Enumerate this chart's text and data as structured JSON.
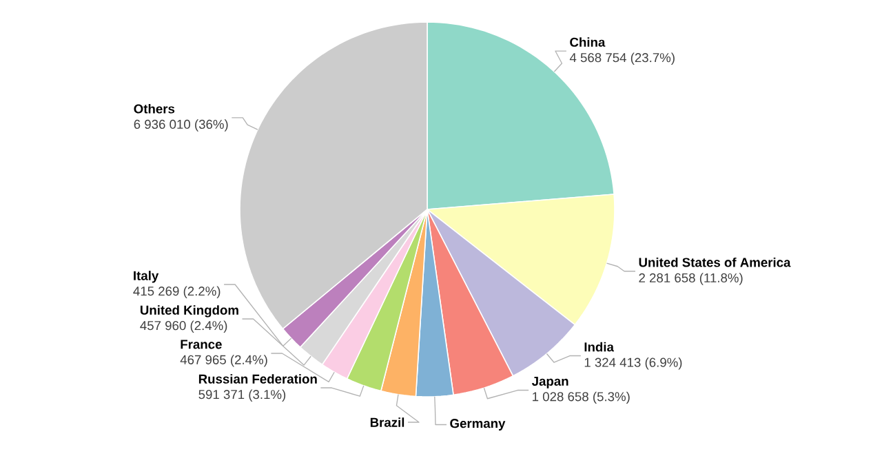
{
  "chart_data": {
    "type": "pie",
    "categories": [
      "China",
      "United States of America",
      "India",
      "Japan",
      "Germany",
      "Brazil",
      "Russian Federation",
      "France",
      "United Kingdom",
      "Italy",
      "Others"
    ],
    "values": [
      4568754,
      2281658,
      1324413,
      1028658,
      617000,
      578000,
      591371,
      467965,
      457960,
      415269,
      6936010
    ],
    "value_labels": [
      "4 568 754 (23.7%)",
      "2 281 658 (11.8%)",
      "1 324 413 (6.9%)",
      "1 028 658 (5.3%)",
      null,
      null,
      "591 371 (3.1%)",
      "467 965 (2.4%)",
      "457 960 (2.4%)",
      "415 269 (2.2%)",
      "6 936 010 (36%)"
    ],
    "colors": [
      "#8fd8c8",
      "#fdfdb8",
      "#bcb8dc",
      "#f6847a",
      "#7fb1d5",
      "#fdb265",
      "#b3dd6c",
      "#fbcde4",
      "#d9d9d9",
      "#bc80bd",
      "#cccccc"
    ]
  }
}
